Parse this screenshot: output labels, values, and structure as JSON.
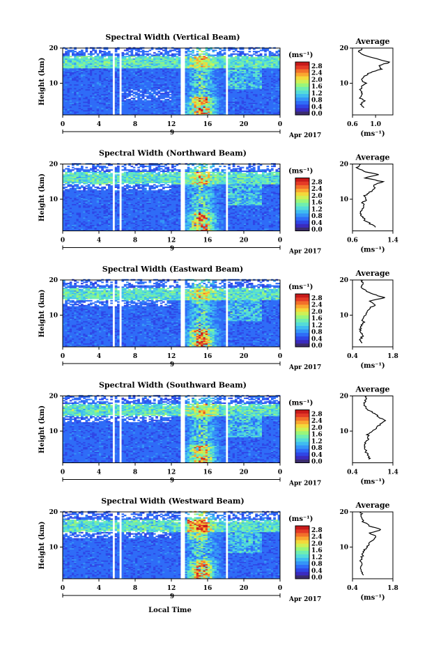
{
  "chart_data": [
    {
      "type": "heatmap",
      "title": "Spectral Width (Vertical Beam)",
      "ylabel": "Height (km)",
      "x_ticks": [
        "0",
        "4",
        "8",
        "12",
        "16",
        "20",
        "0"
      ],
      "y_ticks": [
        "20",
        "10"
      ],
      "xlim": [
        0,
        24
      ],
      "ylim": [
        1,
        20
      ],
      "date_tick": "9",
      "date_label": "Apr 2017",
      "colorbar": {
        "unit": "(ms⁻¹)",
        "ticks": [
          "2.8",
          "2.4",
          "2.0",
          "1.6",
          "1.2",
          "0.8",
          "0.4",
          "0.0"
        ]
      },
      "average": {
        "title": "Average",
        "xlabel": "(ms⁻¹)",
        "x_ticks": [
          "0.6",
          "1.0"
        ],
        "xlim": [
          0.6,
          1.3
        ],
        "y_ticks": [
          "20",
          "10"
        ],
        "profile": [
          [
            0.78,
            3
          ],
          [
            0.74,
            4
          ],
          [
            0.8,
            5
          ],
          [
            0.72,
            6
          ],
          [
            0.78,
            7
          ],
          [
            0.72,
            8
          ],
          [
            0.76,
            9
          ],
          [
            0.84,
            10
          ],
          [
            0.74,
            11
          ],
          [
            0.8,
            12
          ],
          [
            0.9,
            13
          ],
          [
            1.1,
            14
          ],
          [
            1.05,
            15
          ],
          [
            1.25,
            16
          ],
          [
            1.0,
            17
          ],
          [
            0.8,
            18
          ],
          [
            0.72,
            19
          ],
          [
            0.76,
            20
          ]
        ]
      }
    },
    {
      "type": "heatmap",
      "title": "Spectral Width (Northward Beam)",
      "ylabel": "Height (km)",
      "x_ticks": [
        "0",
        "4",
        "8",
        "12",
        "16",
        "20",
        "0"
      ],
      "y_ticks": [
        "20",
        "10"
      ],
      "xlim": [
        0,
        24
      ],
      "ylim": [
        1,
        20
      ],
      "date_tick": "9",
      "date_label": "Apr 2017",
      "colorbar": {
        "unit": "(ms⁻¹)",
        "ticks": [
          "2.8",
          "2.4",
          "2.0",
          "1.6",
          "1.2",
          "0.8",
          "0.4",
          "0.0"
        ]
      },
      "average": {
        "title": "Average",
        "xlabel": "(ms⁻¹)",
        "x_ticks": [
          "0.6",
          "1.4"
        ],
        "xlim": [
          0.6,
          1.4
        ],
        "y_ticks": [
          "20",
          "10"
        ],
        "profile": [
          [
            1.05,
            2
          ],
          [
            0.95,
            3
          ],
          [
            0.85,
            4
          ],
          [
            0.8,
            5
          ],
          [
            0.74,
            6
          ],
          [
            0.78,
            7
          ],
          [
            0.82,
            8
          ],
          [
            0.8,
            9
          ],
          [
            0.88,
            10
          ],
          [
            0.84,
            11
          ],
          [
            0.95,
            12
          ],
          [
            1.05,
            13
          ],
          [
            1.0,
            14
          ],
          [
            1.2,
            15
          ],
          [
            0.85,
            16
          ],
          [
            1.1,
            17
          ],
          [
            0.8,
            18
          ],
          [
            0.7,
            19
          ],
          [
            0.76,
            20
          ]
        ]
      }
    },
    {
      "type": "heatmap",
      "title": "Spectral Width (Eastward Beam)",
      "ylabel": "Height (km)",
      "x_ticks": [
        "0",
        "4",
        "8",
        "12",
        "16",
        "20",
        "0"
      ],
      "y_ticks": [
        "20",
        "10"
      ],
      "xlim": [
        0,
        24
      ],
      "ylim": [
        1,
        20
      ],
      "date_tick": "9",
      "date_label": "Apr 2017",
      "colorbar": {
        "unit": "(ms⁻¹)",
        "ticks": [
          "2.8",
          "2.4",
          "2.0",
          "1.6",
          "1.2",
          "0.8",
          "0.4",
          "0.0"
        ]
      },
      "average": {
        "title": "Average",
        "xlabel": "(ms⁻¹)",
        "x_ticks": [
          "0.4",
          "1.8"
        ],
        "xlim": [
          0.4,
          1.8
        ],
        "y_ticks": [
          "20",
          "10"
        ],
        "profile": [
          [
            0.72,
            2
          ],
          [
            0.68,
            3
          ],
          [
            0.74,
            4
          ],
          [
            0.7,
            5
          ],
          [
            0.66,
            6
          ],
          [
            0.72,
            7
          ],
          [
            0.78,
            8
          ],
          [
            0.74,
            9
          ],
          [
            0.82,
            10
          ],
          [
            0.9,
            11
          ],
          [
            1.0,
            12
          ],
          [
            1.2,
            13
          ],
          [
            1.0,
            14
          ],
          [
            1.5,
            15
          ],
          [
            1.1,
            16
          ],
          [
            0.85,
            17
          ],
          [
            0.7,
            18
          ],
          [
            0.75,
            19
          ],
          [
            0.68,
            20
          ]
        ]
      }
    },
    {
      "type": "heatmap",
      "title": "Spectral Width (Southward Beam)",
      "ylabel": "Height (km)",
      "x_ticks": [
        "0",
        "4",
        "8",
        "12",
        "16",
        "20",
        "0"
      ],
      "y_ticks": [
        "20",
        "10"
      ],
      "xlim": [
        0,
        24
      ],
      "ylim": [
        1,
        20
      ],
      "date_tick": "9",
      "date_label": "Apr 2017",
      "colorbar": {
        "unit": "(ms⁻¹)",
        "ticks": [
          "2.8",
          "2.4",
          "2.0",
          "1.6",
          "1.2",
          "0.8",
          "0.4",
          "0.0"
        ]
      },
      "average": {
        "title": "Average",
        "xlabel": "(ms⁻¹)",
        "x_ticks": [
          "0.4",
          "1.4"
        ],
        "xlim": [
          0.4,
          1.4
        ],
        "y_ticks": [
          "20",
          "10"
        ],
        "profile": [
          [
            0.82,
            2
          ],
          [
            0.78,
            3
          ],
          [
            0.74,
            4
          ],
          [
            0.72,
            5
          ],
          [
            0.68,
            6
          ],
          [
            0.75,
            7
          ],
          [
            0.8,
            8
          ],
          [
            0.78,
            9
          ],
          [
            0.9,
            10
          ],
          [
            1.0,
            11
          ],
          [
            1.1,
            12
          ],
          [
            1.2,
            13
          ],
          [
            1.05,
            14
          ],
          [
            0.95,
            15
          ],
          [
            0.8,
            16
          ],
          [
            0.72,
            17
          ],
          [
            0.68,
            18
          ],
          [
            0.74,
            19
          ],
          [
            0.7,
            20
          ]
        ]
      }
    },
    {
      "type": "heatmap",
      "title": "Spectral Width (Westward Beam)",
      "ylabel": "Height (km)",
      "x_ticks": [
        "0",
        "4",
        "8",
        "12",
        "16",
        "20",
        "0"
      ],
      "y_ticks": [
        "20",
        "10"
      ],
      "xlim": [
        0,
        24
      ],
      "ylim": [
        1,
        20
      ],
      "date_tick": "9",
      "date_label": "Apr 2017",
      "colorbar": {
        "unit": "(ms⁻¹)",
        "ticks": [
          "2.8",
          "2.4",
          "2.0",
          "1.6",
          "1.2",
          "0.8",
          "0.4",
          "0.0"
        ]
      },
      "average": {
        "title": "Average",
        "xlabel": "(ms⁻¹)",
        "x_ticks": [
          "0.4",
          "1.8"
        ],
        "xlim": [
          0.4,
          1.8
        ],
        "y_ticks": [
          "20",
          "10"
        ],
        "profile": [
          [
            0.78,
            2
          ],
          [
            0.72,
            3
          ],
          [
            0.68,
            4
          ],
          [
            0.7,
            5
          ],
          [
            0.66,
            6
          ],
          [
            0.72,
            7
          ],
          [
            0.76,
            8
          ],
          [
            0.8,
            9
          ],
          [
            0.9,
            10
          ],
          [
            0.95,
            11
          ],
          [
            1.1,
            12
          ],
          [
            1.2,
            13
          ],
          [
            1.0,
            14
          ],
          [
            1.4,
            15
          ],
          [
            1.0,
            16
          ],
          [
            0.8,
            17
          ],
          [
            0.7,
            18
          ],
          [
            0.74,
            19
          ],
          [
            0.68,
            20
          ]
        ]
      }
    }
  ],
  "bottom_xlabel": "Local Time"
}
